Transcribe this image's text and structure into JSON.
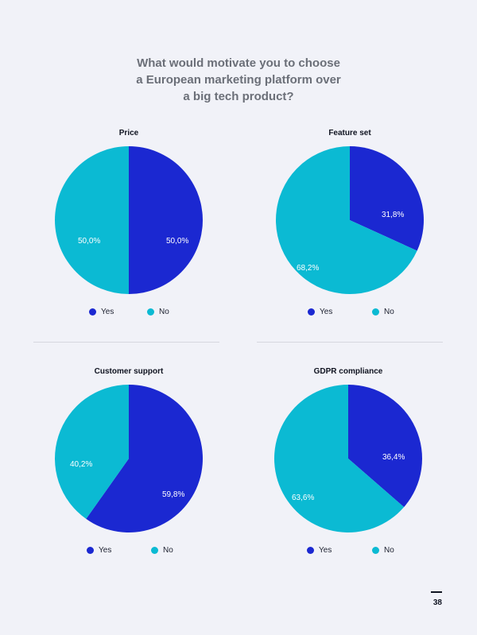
{
  "title_lines": [
    "What would motivate you to choose",
    "a European marketing platform over",
    "a big tech product?"
  ],
  "legend": {
    "yes": "Yes",
    "no": "No"
  },
  "colors": {
    "yes": "#1b28d1",
    "no": "#0bbad3",
    "background": "#f1f2f8"
  },
  "labels": {
    "price": {
      "title": "Price",
      "yes": "50,0%",
      "no": "50,0%"
    },
    "feature": {
      "title": "Feature set",
      "yes": "31,8%",
      "no": "68,2%"
    },
    "support": {
      "title": "Customer support",
      "yes": "59,8%",
      "no": "40,2%"
    },
    "gdpr": {
      "title": "GDPR compliance",
      "yes": "36,4%",
      "no": "63,6%"
    }
  },
  "page_number": "38",
  "chart_data": [
    {
      "type": "pie",
      "title": "Price",
      "categories": [
        "Yes",
        "No"
      ],
      "values": [
        50.0,
        50.0
      ]
    },
    {
      "type": "pie",
      "title": "Feature set",
      "categories": [
        "Yes",
        "No"
      ],
      "values": [
        31.8,
        68.2
      ]
    },
    {
      "type": "pie",
      "title": "Customer support",
      "categories": [
        "Yes",
        "No"
      ],
      "values": [
        59.8,
        40.2
      ]
    },
    {
      "type": "pie",
      "title": "GDPR compliance",
      "categories": [
        "Yes",
        "No"
      ],
      "values": [
        36.4,
        63.6
      ]
    }
  ]
}
